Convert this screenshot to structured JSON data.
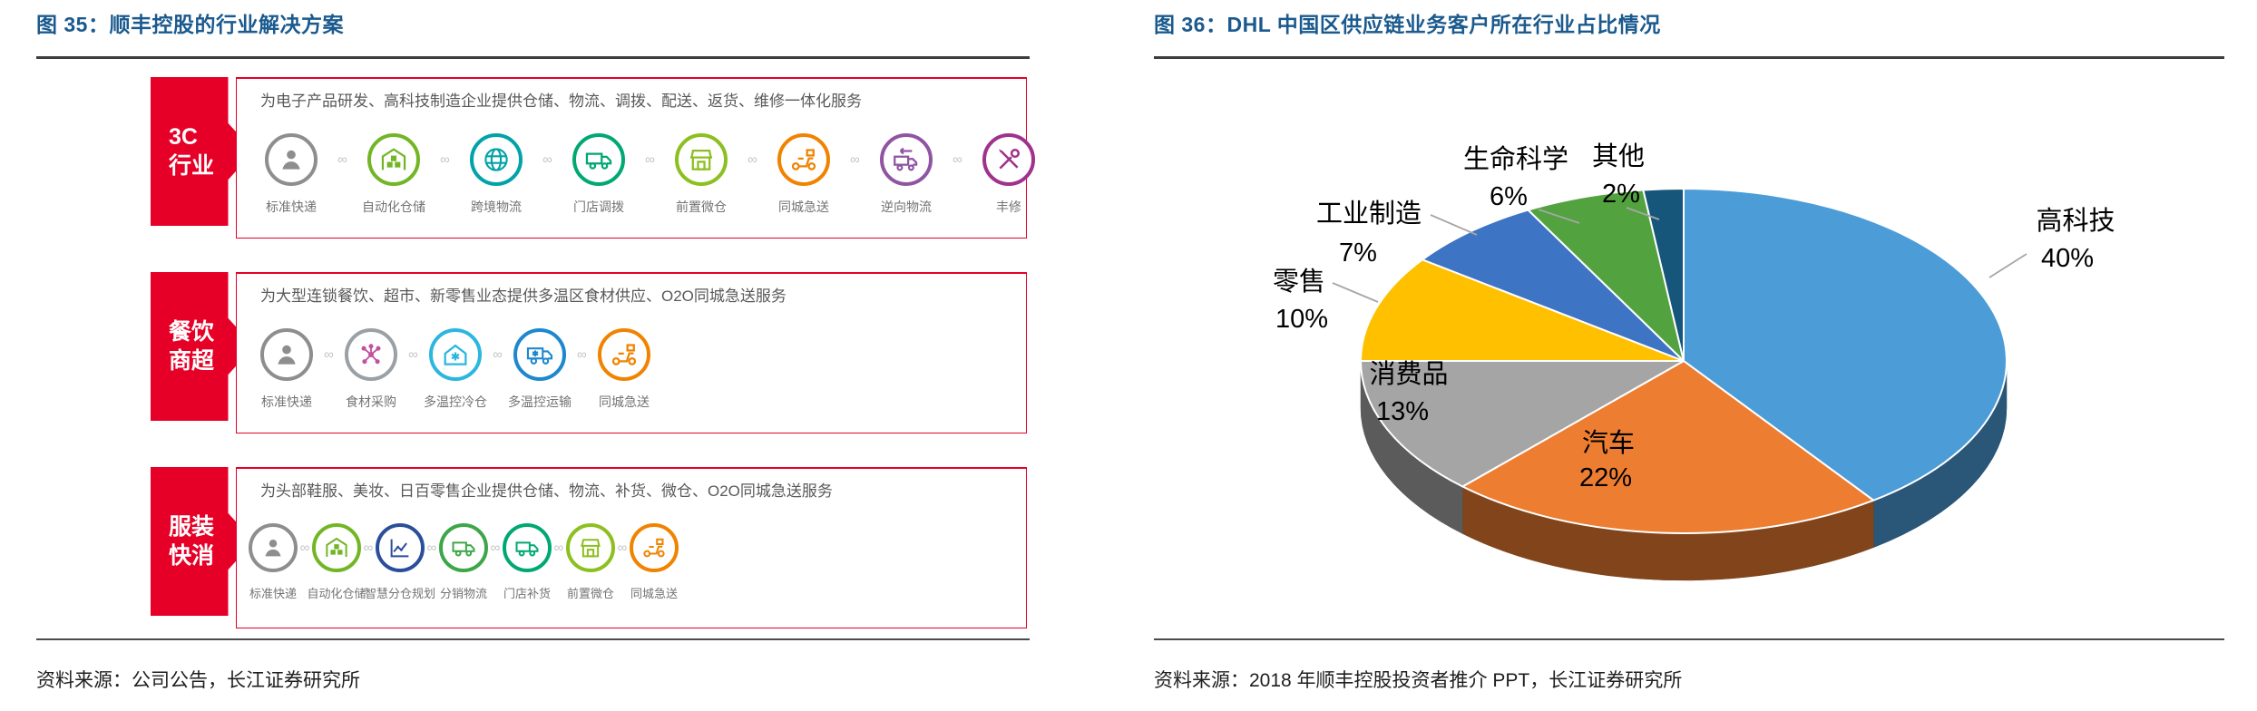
{
  "figure_left": {
    "title": "图 35：顺丰控股的行业解决方案",
    "source": "资料来源：公司公告，长江证券研究所",
    "accent_red": "#e60027",
    "connector_glyph": "∞",
    "rows": [
      {
        "category": [
          "3C",
          "行业"
        ],
        "description": "为电子产品研发、高科技制造企业提供仓储、物流、调拨、配送、返货、维修一体化服务",
        "items": [
          {
            "label": "标准快递",
            "icon": "person",
            "color": "#8e8e8e"
          },
          {
            "label": "自动化仓储",
            "icon": "warehouse",
            "color": "#72b626"
          },
          {
            "label": "跨境物流",
            "icon": "globe",
            "color": "#00a3a9"
          },
          {
            "label": "门店调拨",
            "icon": "truck",
            "color": "#00a873"
          },
          {
            "label": "前置微仓",
            "icon": "storefront",
            "color": "#8cbf1f"
          },
          {
            "label": "同城急送",
            "icon": "scooter",
            "color": "#f08300"
          },
          {
            "label": "逆向物流",
            "icon": "truck-return",
            "color": "#9055a2"
          },
          {
            "label": "丰修",
            "icon": "tools",
            "color": "#a0328c"
          }
        ]
      },
      {
        "category": [
          "餐饮",
          "商超"
        ],
        "description": "为大型连锁餐饮、超市、新零售业态提供多温区食材供应、O2O同城急送服务",
        "items": [
          {
            "label": "标准快递",
            "icon": "person",
            "color": "#8e8e8e"
          },
          {
            "label": "食材采购",
            "icon": "molecule",
            "color": "#9aa0a6",
            "glyph_color": "#c2519e"
          },
          {
            "label": "多温控冷仓",
            "icon": "house-snow",
            "color": "#2bb7de"
          },
          {
            "label": "多温控运输",
            "icon": "truck-snow",
            "color": "#1e88ce"
          },
          {
            "label": "同城急送",
            "icon": "scooter",
            "color": "#f08300"
          }
        ]
      },
      {
        "category": [
          "服装",
          "快消"
        ],
        "description": "为头部鞋服、美妆、日百零售企业提供仓储、物流、补货、微仓、O2O同城急送服务",
        "items": [
          {
            "label": "标准快递",
            "icon": "person",
            "color": "#8e8e8e"
          },
          {
            "label": "自动化仓储",
            "icon": "warehouse",
            "color": "#72b626"
          },
          {
            "label": "智慧分仓规划",
            "icon": "chart",
            "color": "#2b4e9b"
          },
          {
            "label": "分销物流",
            "icon": "truck",
            "color": "#3da648"
          },
          {
            "label": "门店补货",
            "icon": "truck",
            "color": "#00a873"
          },
          {
            "label": "前置微仓",
            "icon": "storefront",
            "color": "#8cbf1f"
          },
          {
            "label": "同城急送",
            "icon": "scooter",
            "color": "#f08300"
          }
        ]
      }
    ]
  },
  "figure_right": {
    "title": "图 36：DHL 中国区供应链业务客户所在行业占比情况",
    "source": "资料来源：2018 年顺丰控股投资者推介 PPT，长江证券研究所"
  },
  "chart_data": {
    "type": "pie",
    "title": "DHL 中国区供应链业务客户所在行业占比情况",
    "labels": [
      "高科技",
      "汽车",
      "消费品",
      "零售",
      "工业制造",
      "生命科学",
      "其他"
    ],
    "values": [
      40,
      22,
      13,
      10,
      7,
      6,
      2
    ],
    "colors": [
      "#4c9cd8",
      "#ed7d31",
      "#a5a5a5",
      "#ffc000",
      "#3e74c4",
      "#52a33f",
      "#15567a"
    ],
    "style_3d": true,
    "start_angle_deg": 0,
    "direction": "clockwise",
    "legend": "none",
    "label_format": "name + percent"
  }
}
